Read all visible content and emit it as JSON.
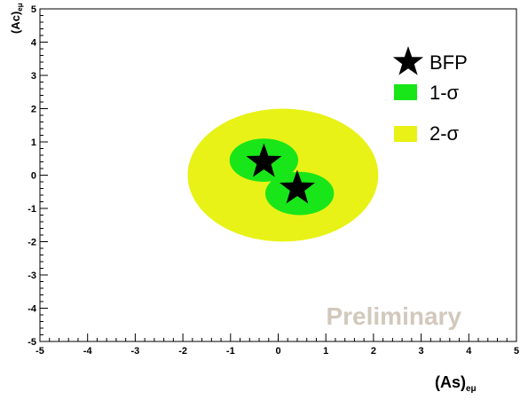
{
  "chart_data": {
    "type": "contour",
    "xlabel": "(As)",
    "xlabel_sub": "eμ",
    "ylabel": "(Ac)",
    "ylabel_sub": "eμ",
    "xlim": [
      -5,
      5
    ],
    "ylim": [
      -5,
      5
    ],
    "x_ticks": [
      "-5",
      "-4",
      "-3",
      "-2",
      "-1",
      "0",
      "1",
      "2",
      "3",
      "4",
      "5"
    ],
    "y_ticks": [
      "-5",
      "-4",
      "-3",
      "-2",
      "-1",
      "0",
      "1",
      "2",
      "3",
      "4",
      "5"
    ],
    "grid": false,
    "legend_position": "top-right",
    "legend": [
      {
        "label": "BFP",
        "symbol": "star"
      },
      {
        "label": "1-σ",
        "symbol": "box"
      },
      {
        "label": "2-σ",
        "symbol": "box"
      }
    ],
    "annotation": "Preliminary",
    "colors": {
      "one_sigma": "#19e619",
      "two_sigma": "#e8f217",
      "bfp": "#000000",
      "annotation": "#d2c8bc"
    },
    "bfp_points": [
      {
        "x": -0.3,
        "y": 0.4
      },
      {
        "x": 0.4,
        "y": -0.4
      }
    ],
    "two_sigma_region": {
      "center": [
        0.1,
        0.0
      ],
      "radius_x": 2.0,
      "radius_y": 2.0
    },
    "one_sigma_regions": [
      {
        "center": [
          -0.3,
          0.45
        ],
        "radius_x": 0.72,
        "radius_y": 0.65
      },
      {
        "center": [
          0.45,
          -0.55
        ],
        "radius_x": 0.72,
        "radius_y": 0.65
      }
    ]
  }
}
